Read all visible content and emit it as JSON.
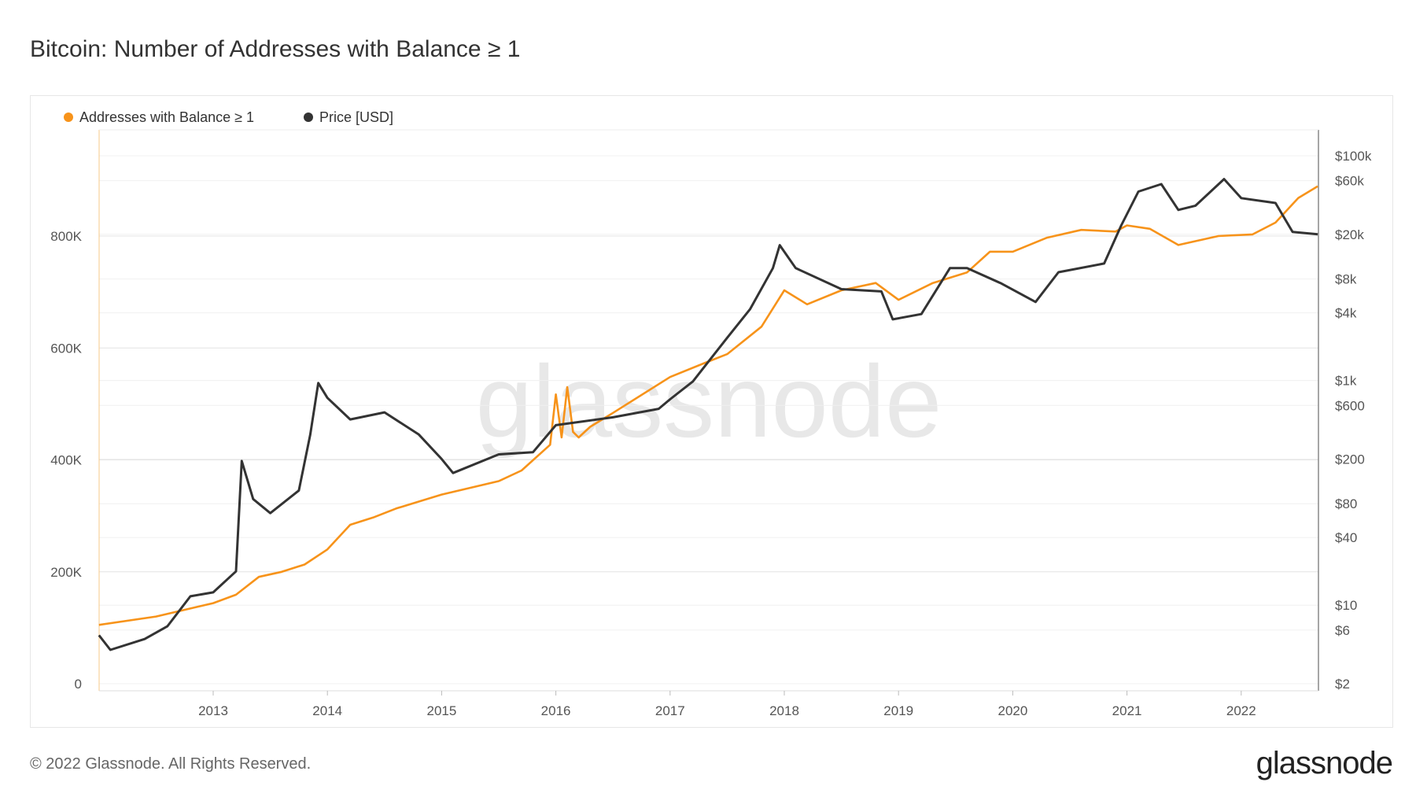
{
  "title": "Bitcoin: Number of Addresses with Balance ≥ 1",
  "footer": "© 2022 Glassnode. All Rights Reserved.",
  "logo": "glassnode",
  "watermark": "glassnode",
  "chart_data": {
    "type": "line",
    "title": "Bitcoin: Number of Addresses with Balance ≥ 1",
    "legend_placement": "top-left",
    "grid": true,
    "x_ticks": [
      "2013",
      "2014",
      "2015",
      "2016",
      "2017",
      "2018",
      "2019",
      "2020",
      "2021",
      "2022"
    ],
    "xlim": [
      2012.0,
      2022.67
    ],
    "y_left": {
      "ticks": [
        "0",
        "200K",
        "400K",
        "600K",
        "800K"
      ],
      "tick_values": [
        0,
        200000,
        400000,
        600000,
        800000
      ],
      "ylim": [
        0,
        1000000
      ],
      "scale": "linear"
    },
    "y_right": {
      "ticks": [
        "$100k",
        "$60k",
        "$20k",
        "$8k",
        "$4k",
        "$1k",
        "$600",
        "$200",
        "$80",
        "$40",
        "$10",
        "$6",
        "$2"
      ],
      "tick_values": [
        100000,
        60000,
        20000,
        8000,
        4000,
        1000,
        600,
        200,
        80,
        40,
        10,
        6,
        2
      ],
      "ylim": [
        2,
        100000
      ],
      "scale": "log"
    },
    "series": [
      {
        "name": "Addresses with Balance ≥ 1",
        "color": "#f7931a",
        "axis": "left",
        "x": [
          2012.0,
          2012.5,
          2013.0,
          2013.2,
          2013.4,
          2013.6,
          2013.8,
          2014.0,
          2014.2,
          2014.4,
          2014.6,
          2015.0,
          2015.5,
          2015.7,
          2015.95,
          2016.0,
          2016.05,
          2016.1,
          2016.15,
          2016.2,
          2016.3,
          2016.5,
          2017.0,
          2017.3,
          2017.5,
          2017.8,
          2018.0,
          2018.2,
          2018.5,
          2018.8,
          2019.0,
          2019.3,
          2019.6,
          2019.8,
          2020.0,
          2020.3,
          2020.6,
          2020.9,
          2021.0,
          2021.2,
          2021.45,
          2021.8,
          2022.1,
          2022.3,
          2022.5,
          2022.67
        ],
        "y": [
          105000,
          120000,
          144000,
          159000,
          191000,
          200000,
          213000,
          240000,
          284000,
          297000,
          313000,
          338000,
          362000,
          381000,
          427000,
          517000,
          440000,
          530000,
          450000,
          440000,
          459000,
          484000,
          548000,
          573000,
          589000,
          638000,
          703000,
          678000,
          703000,
          716000,
          686000,
          716000,
          735000,
          772000,
          772000,
          797000,
          811000,
          808000,
          819000,
          813000,
          784000,
          800000,
          803000,
          824000,
          868000,
          889000
        ]
      },
      {
        "name": "Price [USD]",
        "color": "#333333",
        "axis": "right",
        "x": [
          2012.0,
          2012.1,
          2012.4,
          2012.6,
          2012.8,
          2013.0,
          2013.2,
          2013.25,
          2013.35,
          2013.5,
          2013.75,
          2013.85,
          2013.92,
          2014.0,
          2014.2,
          2014.5,
          2014.8,
          2015.0,
          2015.1,
          2015.5,
          2015.8,
          2016.0,
          2016.5,
          2016.9,
          2017.0,
          2017.2,
          2017.5,
          2017.7,
          2017.9,
          2017.96,
          2018.1,
          2018.5,
          2018.85,
          2018.95,
          2019.2,
          2019.45,
          2019.6,
          2019.9,
          2020.2,
          2020.4,
          2020.8,
          2020.95,
          2021.1,
          2021.3,
          2021.45,
          2021.6,
          2021.85,
          2022.0,
          2022.3,
          2022.45,
          2022.67
        ],
        "y": [
          5.4,
          4,
          5,
          6.5,
          12,
          13,
          20,
          192,
          88,
          66,
          105,
          330,
          950,
          700,
          450,
          520,
          330,
          200,
          150,
          220,
          230,
          400,
          470,
          560,
          680,
          980,
          2400,
          4300,
          10000,
          16000,
          10000,
          6500,
          6200,
          3500,
          3900,
          10000,
          10000,
          7300,
          5000,
          9200,
          11000,
          24000,
          48000,
          56000,
          33000,
          36000,
          62000,
          42000,
          38000,
          21000,
          20000
        ]
      }
    ]
  }
}
